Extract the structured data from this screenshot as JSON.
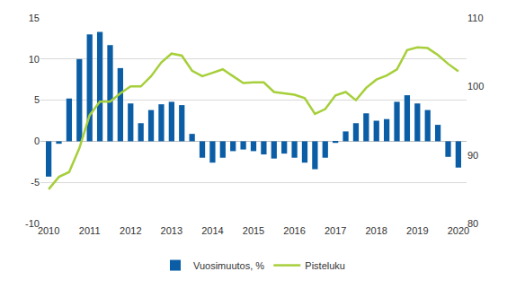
{
  "chart_data": {
    "type": "bar",
    "categories": [
      "2010",
      null,
      null,
      null,
      "2011",
      null,
      null,
      null,
      "2012",
      null,
      null,
      null,
      "2013",
      null,
      null,
      null,
      "2014",
      null,
      null,
      null,
      "2015",
      null,
      null,
      null,
      "2016",
      null,
      null,
      null,
      "2017",
      null,
      null,
      null,
      "2018",
      null,
      null,
      null,
      "2019",
      null,
      null,
      null,
      "2020"
    ],
    "series": [
      {
        "name": "Vuosimuutos, %",
        "type": "bar",
        "color": "#0b5ea6",
        "values": [
          -4.3,
          -0.3,
          5.2,
          10,
          13,
          13.3,
          11.7,
          8.9,
          4.6,
          2.2,
          3.8,
          4.5,
          4.8,
          4.4,
          0.9,
          -2,
          -2.6,
          -2,
          -1.2,
          -1,
          -1.2,
          -1.6,
          -2.1,
          -1.5,
          -2,
          -2.6,
          -3.4,
          -2,
          -0.2,
          1.2,
          2.2,
          3.4,
          2.5,
          2.7,
          4.8,
          5.6,
          4.6,
          3.8,
          2,
          -1.9,
          -3.2
        ]
      },
      {
        "name": "Pisteluku",
        "type": "line",
        "axis": "y2",
        "color": "#a6cf3a",
        "values": [
          85,
          86.8,
          87.5,
          91,
          95.8,
          97.8,
          97.8,
          99,
          100,
          100,
          101.5,
          103.5,
          104.8,
          104.5,
          102.3,
          101.5,
          102,
          102.5,
          101.5,
          100.5,
          100.6,
          100.6,
          99.2,
          99,
          98.8,
          98.3,
          96,
          96.7,
          98.7,
          99.2,
          98,
          99.8,
          101,
          101.6,
          102.5,
          105.3,
          105.7,
          105.6,
          104.6,
          103.3,
          102.2
        ]
      }
    ],
    "ylim": [
      -10,
      15
    ],
    "yticks": [
      -10,
      -5,
      0,
      5,
      10,
      15
    ],
    "y2lim": [
      80,
      110
    ],
    "y2ticks": [
      80,
      90,
      100,
      110
    ],
    "grid": true,
    "legend": "bottom"
  }
}
